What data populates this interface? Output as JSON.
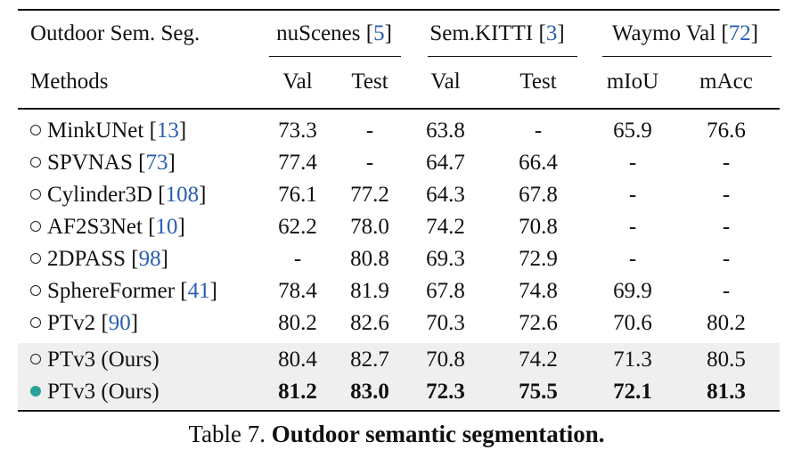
{
  "table": {
    "corner_label": "Outdoor Sem. Seg.",
    "methods_label": "Methods",
    "groups": [
      {
        "name": "nuScenes",
        "cite": "5"
      },
      {
        "name": "Sem.KITTI",
        "cite": "3"
      },
      {
        "name": "Waymo Val",
        "cite": "72"
      }
    ],
    "subheaders": [
      "Val",
      "Test",
      "Val",
      "Test",
      "mIoU",
      "mAcc"
    ],
    "rows": [
      {
        "name": "MinkUNet",
        "cite": "13",
        "values": [
          "73.3",
          "-",
          "63.8",
          "-",
          "65.9",
          "76.6"
        ]
      },
      {
        "name": "SPVNAS",
        "cite": "73",
        "values": [
          "77.4",
          "-",
          "64.7",
          "66.4",
          "-",
          "-"
        ]
      },
      {
        "name": "Cylinder3D",
        "cite": "108",
        "values": [
          "76.1",
          "77.2",
          "64.3",
          "67.8",
          "-",
          "-"
        ]
      },
      {
        "name": "AF2S3Net",
        "cite": "10",
        "values": [
          "62.2",
          "78.0",
          "74.2",
          "70.8",
          "-",
          "-"
        ]
      },
      {
        "name": "2DPASS",
        "cite": "98",
        "values": [
          "-",
          "80.8",
          "69.3",
          "72.9",
          "-",
          "-"
        ]
      },
      {
        "name": "SphereFormer",
        "cite": "41",
        "values": [
          "78.4",
          "81.9",
          "67.8",
          "74.8",
          "69.9",
          "-"
        ]
      },
      {
        "name": "PTv2",
        "cite": "90",
        "values": [
          "80.2",
          "82.6",
          "70.3",
          "72.6",
          "70.6",
          "80.2"
        ]
      },
      {
        "name": "PTv3 (Ours)",
        "cite": "",
        "values": [
          "80.4",
          "82.7",
          "70.8",
          "74.2",
          "71.3",
          "80.5"
        ]
      },
      {
        "name": "PTv3 (Ours)",
        "cite": "",
        "values": [
          "81.2",
          "83.0",
          "72.3",
          "75.5",
          "72.1",
          "81.3"
        ]
      }
    ]
  },
  "caption": {
    "prefix": "Table 7.",
    "title": "Outdoor semantic segmentation."
  },
  "colors": {
    "citation": "#2a5db0",
    "highlight_row_bg": "#efefef",
    "filled_marker": "#2aa198"
  }
}
